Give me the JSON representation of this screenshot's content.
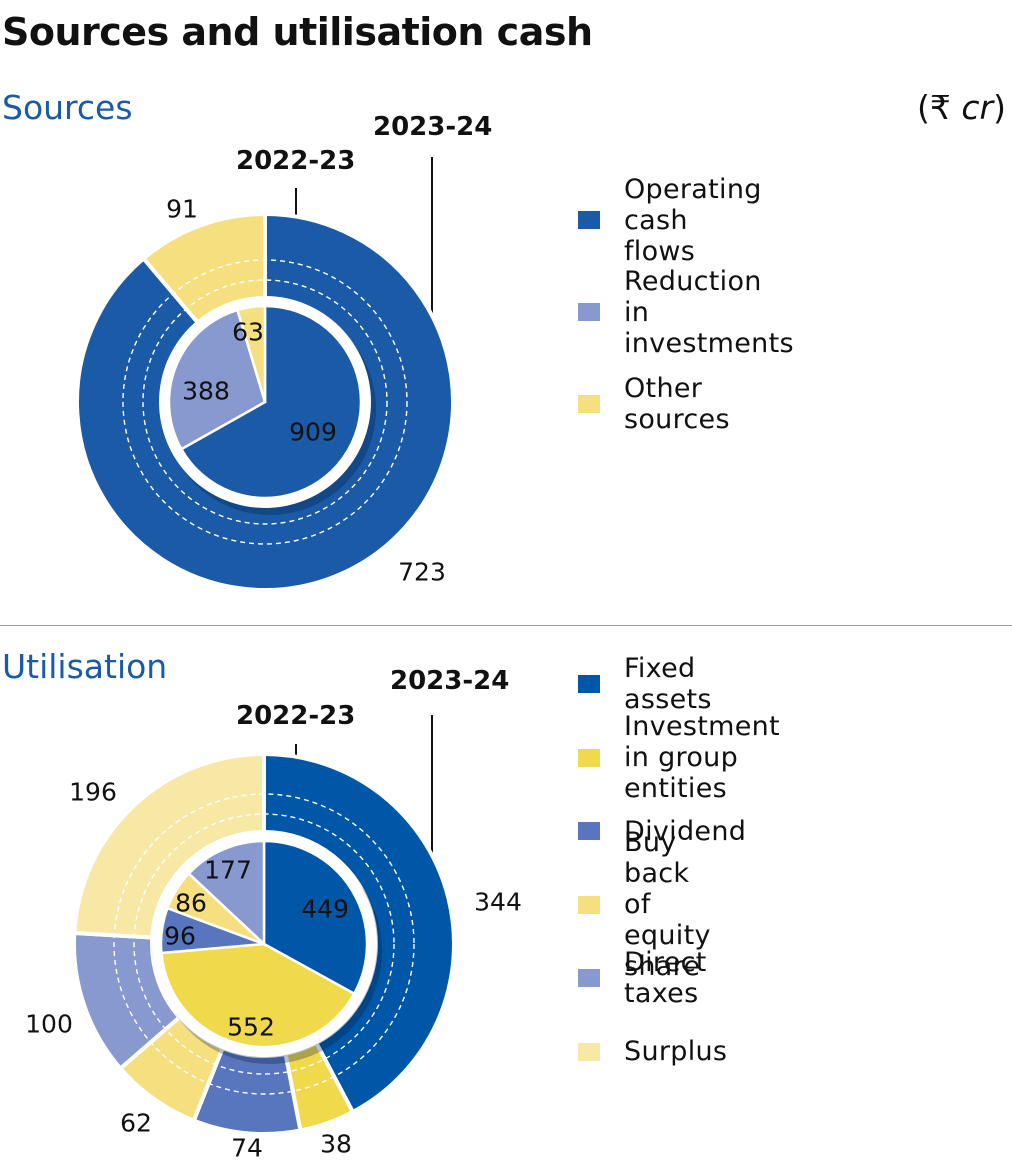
{
  "title": "Sources and utilisation cash",
  "unit": {
    "open": "(",
    "symbol": "₹ ",
    "text": "cr",
    "close": ")"
  },
  "colors": {
    "dark_blue": "#0057a8",
    "mid_blue": "#5776bd",
    "light_blue": "#8799cf",
    "yellow": "#f0d94a",
    "light_yellow": "#f5df7e",
    "pale_yellow": "#f7e8a6"
  },
  "chart_data": [
    {
      "type": "pie",
      "subtype": "nested-donut",
      "title": "Sources",
      "inner_label": "2022-23",
      "outer_label": "2023-24",
      "legend": [
        {
          "name": "Operating cash flows",
          "color": "#1a5aa6"
        },
        {
          "name": "Reduction in investments",
          "color": "#8799cf"
        },
        {
          "name": "Other sources",
          "color": "#f5df7e"
        }
      ],
      "inner": [
        {
          "name": "Operating cash flows",
          "value": 909,
          "label": "909"
        },
        {
          "name": "Reduction in investments",
          "value": 388,
          "label": "388"
        },
        {
          "name": "Other sources",
          "value": 63,
          "label": "63"
        }
      ],
      "outer": [
        {
          "name": "Operating cash flows",
          "value": 723,
          "label": "723"
        },
        {
          "name": "Reduction in investments",
          "value": 0,
          "label": ""
        },
        {
          "name": "Other sources",
          "value": 91,
          "label": "91"
        }
      ]
    },
    {
      "type": "pie",
      "subtype": "nested-donut",
      "title": "Utilisation",
      "inner_label": "2022-23",
      "outer_label": "2023-24",
      "legend": [
        {
          "name": "Fixed assets",
          "color": "#0057a8"
        },
        {
          "name": "Investment in group entities",
          "color": "#f0d94a"
        },
        {
          "name": "Dividend",
          "color": "#5776bd"
        },
        {
          "name": "Buy back of equity share",
          "color": "#f5df7e"
        },
        {
          "name": " Direct taxes",
          "color": "#8799cf"
        },
        {
          "name": "Surplus",
          "color": "#f7e8a6"
        }
      ],
      "inner": [
        {
          "name": "Fixed assets",
          "value": 449,
          "label": "449"
        },
        {
          "name": "Investment in group entities",
          "value": 552,
          "label": "552"
        },
        {
          "name": "Dividend",
          "value": 96,
          "label": "96"
        },
        {
          "name": "Buy back of equity share",
          "value": 86,
          "label": "86"
        },
        {
          "name": "Direct taxes",
          "value": 177,
          "label": "177"
        },
        {
          "name": "Surplus",
          "value": 0,
          "label": ""
        }
      ],
      "outer": [
        {
          "name": "Fixed assets",
          "value": 344,
          "label": "344"
        },
        {
          "name": "Investment in group entities",
          "value": 38,
          "label": "38"
        },
        {
          "name": "Dividend",
          "value": 74,
          "label": "74"
        },
        {
          "name": "Buy back of equity share",
          "value": 62,
          "label": "62"
        },
        {
          "name": "Direct taxes",
          "value": 100,
          "label": "100"
        },
        {
          "name": "Surplus",
          "value": 196,
          "label": "196"
        }
      ]
    }
  ]
}
